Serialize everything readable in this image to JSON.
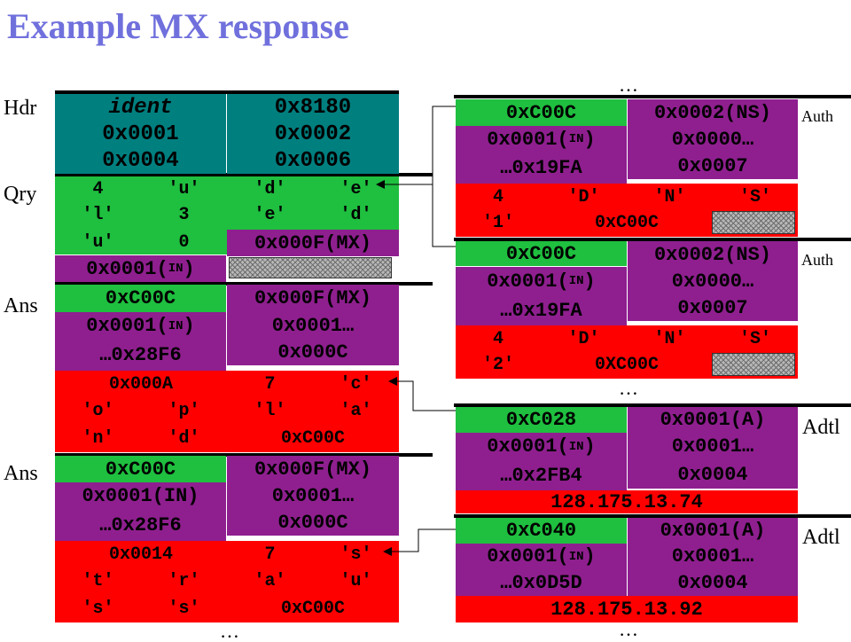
{
  "title": "Example MX response",
  "labels": {
    "hdr": "Hdr",
    "qry": "Qry",
    "ans": "Ans",
    "auth": "Auth",
    "adtl": "Adtl"
  },
  "ellipsis": "…",
  "colors": {
    "title": "#7070dd",
    "header": "#007f7f",
    "name": "#1fbf3f",
    "type_class": "#8f1f8f",
    "rdata": "#ff0000"
  },
  "hdr": {
    "ident": "ident",
    "flags": "0x8180",
    "qdcount": "0x0001",
    "ancount": "0x0002",
    "nscount": "0x0004",
    "arcount": "0x0006"
  },
  "qry": {
    "row1": [
      "4",
      "'u'",
      "'d'",
      "'e'"
    ],
    "row2": [
      "'l'",
      "3",
      "'e'",
      "'d'"
    ],
    "row3": [
      "'u'",
      "0"
    ],
    "qtype": "0x000F(MX)",
    "qclass": "0x0001(",
    "qclass_sub": "IN",
    "qclass_end": ")"
  },
  "ans1": {
    "name": "0xC00C",
    "type": "0x000F(MX)",
    "class": "0x0001(",
    "class_sub": "IN",
    "class_end": ")",
    "ttl_hi": "0x0001…",
    "ttl_lo": "…0x28F6",
    "rdlength": "0x000C",
    "rdata": [
      [
        "0x000A",
        "7",
        "'c'"
      ],
      [
        "'o'",
        "'p'",
        "'l'",
        "'a'"
      ],
      [
        "'n'",
        "'d'",
        "0xC00C"
      ]
    ]
  },
  "ans2": {
    "name": "0xC00C",
    "type": "0x000F(MX)",
    "class": "0x0001(IN)",
    "ttl_hi": "0x0001…",
    "ttl_lo": "…0x28F6",
    "rdlength": "0x000C",
    "rdata": [
      [
        "0x0014",
        "7",
        "'s'"
      ],
      [
        "'t'",
        "'r'",
        "'a'",
        "'u'"
      ],
      [
        "'s'",
        "'s'",
        "0xC00C"
      ]
    ]
  },
  "auth1": {
    "name": "0xC00C",
    "type": "0x0002(NS)",
    "class": "0x0001(",
    "class_sub": "IN",
    "class_end": ")",
    "ttl_hi": "0x0000…",
    "ttl_lo": "…0x19FA",
    "rdlength": "0x0007",
    "rdata": [
      [
        "4",
        "'D'",
        "'N'",
        "'S'"
      ],
      [
        "'1'",
        "0xC00C"
      ]
    ]
  },
  "auth2": {
    "name": "0xC00C",
    "type": "0x0002(NS)",
    "class": "0x0001(",
    "class_sub": "IN",
    "class_end": ")",
    "ttl_hi": "0x0000…",
    "ttl_lo": "…0x19FA",
    "rdlength": "0x0007",
    "rdata": [
      [
        "4",
        "'D'",
        "'N'",
        "'S'"
      ],
      [
        "'2'",
        "0XC00C"
      ]
    ]
  },
  "adtl1": {
    "name": "0xC028",
    "type": "0x0001(A)",
    "class": "0x0001(",
    "class_sub": "IN",
    "class_end": ")",
    "ttl_hi": "0x0001…",
    "ttl_lo": "…0x2FB4",
    "rdlength": "0x0004",
    "address": "128.175.13.74"
  },
  "adtl2": {
    "name": "0xC040",
    "type": "0x0001(A)",
    "class": "0x0001(",
    "class_sub": "IN",
    "class_end": ")",
    "ttl_hi": "0x0001…",
    "ttl_lo": "…0x0D5D",
    "rdlength": "0x0004",
    "address": "128.175.13.92"
  }
}
